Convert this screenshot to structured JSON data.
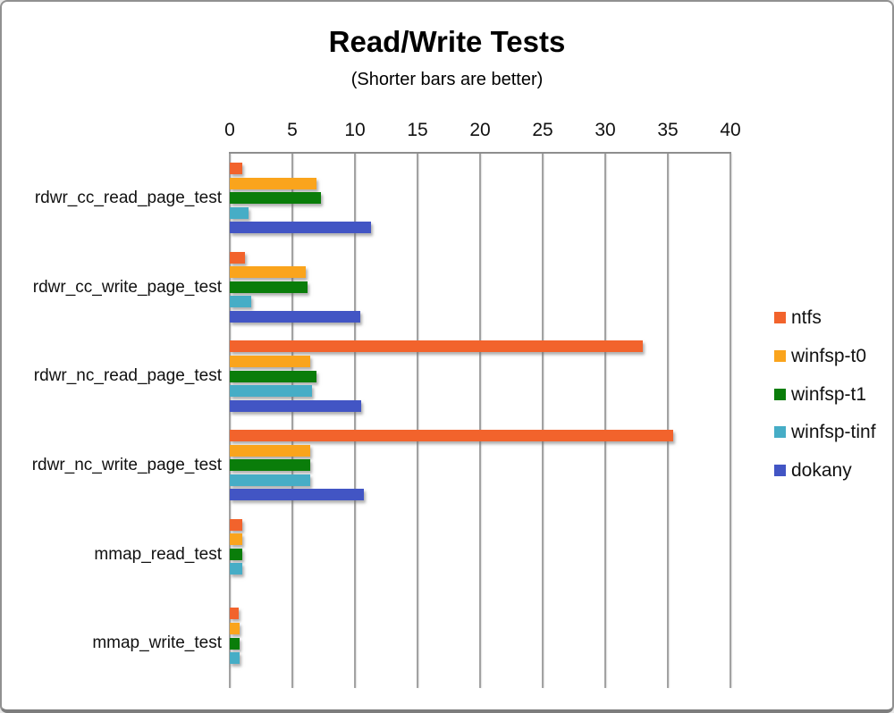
{
  "title": "Read/Write Tests",
  "subtitle": "(Shorter bars are better)",
  "chart_data": {
    "type": "bar",
    "orientation": "horizontal",
    "title": "Read/Write Tests",
    "subtitle": "(Shorter bars are better)",
    "xlabel": "",
    "ylabel": "",
    "xlim": [
      0,
      40
    ],
    "xticks": [
      0,
      5,
      10,
      15,
      20,
      25,
      30,
      35,
      40
    ],
    "grid": true,
    "axis_position": "top",
    "legend_position": "right",
    "categories": [
      "rdwr_cc_read_page_test",
      "rdwr_cc_write_page_test",
      "rdwr_nc_read_page_test",
      "rdwr_nc_write_page_test",
      "mmap_read_test",
      "mmap_write_test"
    ],
    "series": [
      {
        "name": "ntfs",
        "color": "#F2632C",
        "values": [
          1.0,
          1.2,
          33.0,
          35.4,
          1.0,
          0.7
        ]
      },
      {
        "name": "winfsp-t0",
        "color": "#FAA41C",
        "values": [
          6.9,
          6.1,
          6.4,
          6.4,
          1.0,
          0.8
        ]
      },
      {
        "name": "winfsp-t1",
        "color": "#0A7D0A",
        "values": [
          7.3,
          6.2,
          6.9,
          6.4,
          1.0,
          0.8
        ]
      },
      {
        "name": "winfsp-tinf",
        "color": "#46ADC6",
        "values": [
          1.5,
          1.7,
          6.6,
          6.4,
          1.0,
          0.8
        ]
      },
      {
        "name": "dokany",
        "color": "#4255C4",
        "values": [
          11.3,
          10.4,
          10.5,
          10.7,
          0,
          0
        ]
      }
    ]
  },
  "style_colors": {
    "gridline": "#a2a2a2",
    "plot_border": "#8e8e8e",
    "text": "#111111"
  }
}
